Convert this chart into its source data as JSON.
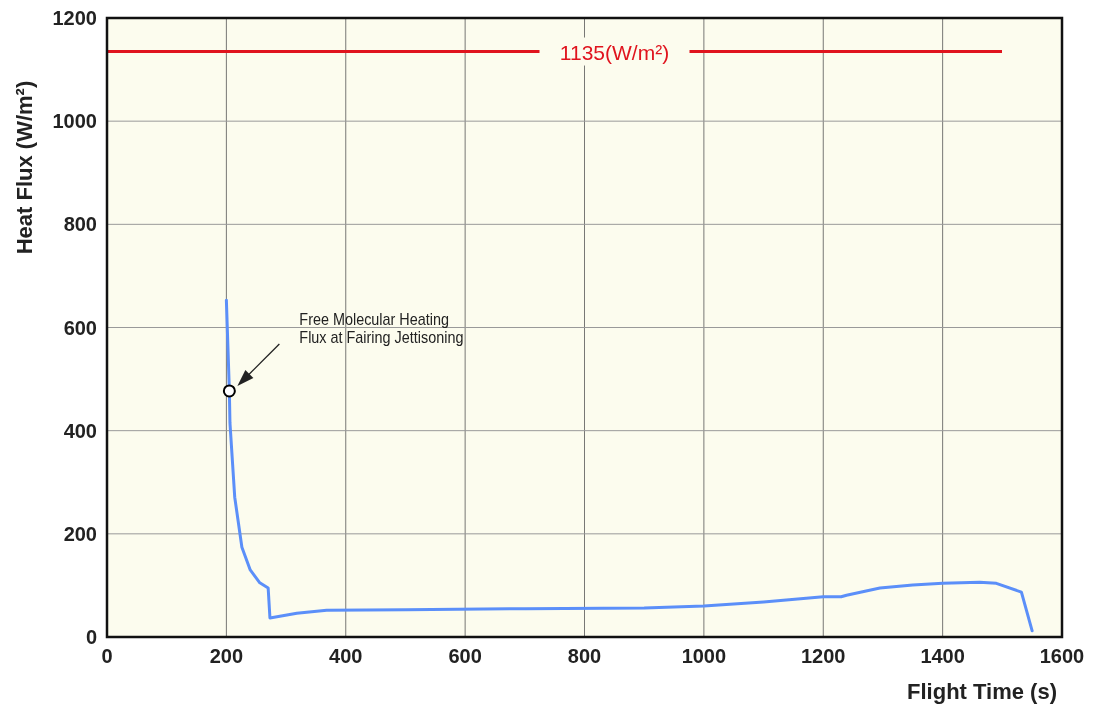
{
  "chart_data": {
    "type": "line",
    "xlabel": "Flight Time (s)",
    "ylabel": "Heat Flux  (W/m²)",
    "xlim": [
      0,
      1600
    ],
    "xticks": [
      0,
      200,
      400,
      600,
      800,
      1000,
      1200,
      1400,
      1600
    ],
    "ylim": [
      0,
      1200
    ],
    "yticks": [
      0,
      200,
      400,
      600,
      800,
      1000,
      1200
    ],
    "grid": true,
    "series": [
      {
        "color": "#5b8ff9",
        "x": [
          200,
          205,
          206,
          214,
          226,
          240,
          256,
          270,
          273,
          318,
          368,
          500,
          700,
          900,
          1000,
          1100,
          1200,
          1230,
          1239,
          1295,
          1350,
          1400,
          1462,
          1490,
          1532,
          1550
        ],
        "values": [
          653,
          477,
          415,
          271,
          174,
          130,
          105,
          95,
          37,
          46,
          52,
          53,
          55,
          56,
          60,
          68,
          78,
          78,
          81,
          95,
          101,
          104,
          106,
          104,
          87,
          12
        ]
      },
      {
        "type": "scatter",
        "marker": "circle",
        "color": "#000000",
        "x": [
          205
        ],
        "values": [
          477
        ]
      }
    ],
    "ref_lines": [
      {
        "axis": "y",
        "value": 1135,
        "label": "1135(W/m²)",
        "color": "#e0141e"
      }
    ],
    "annotations": [
      "Free Molecular Heating\nFlux at Fairing Jettisoning"
    ]
  }
}
